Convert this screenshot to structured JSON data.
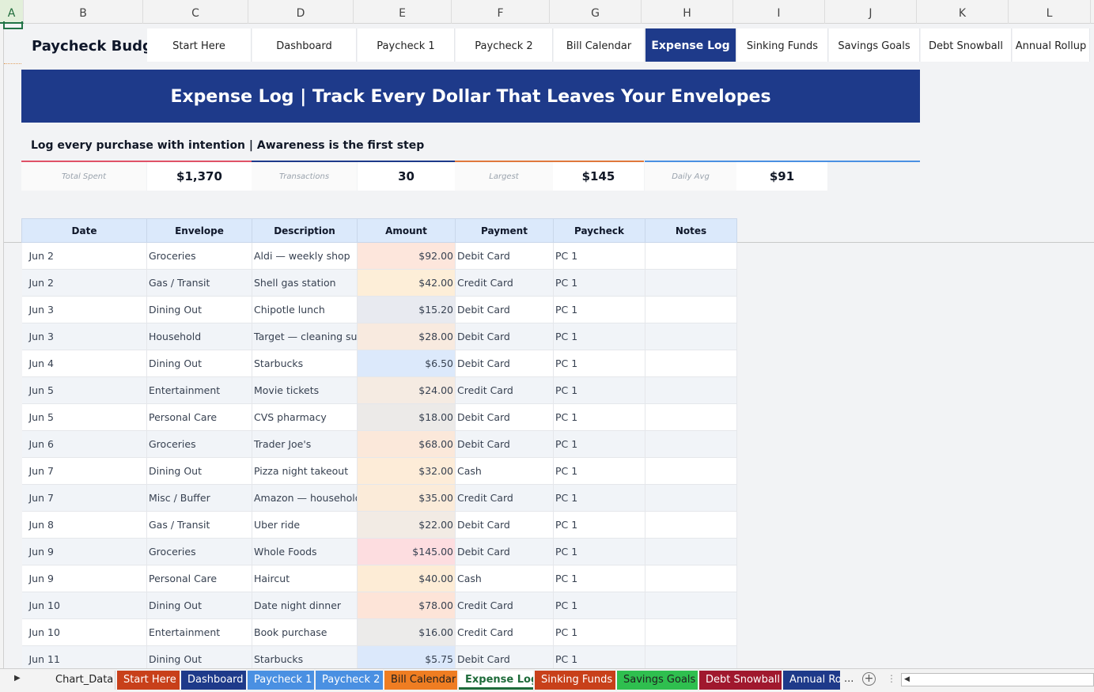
{
  "columns": [
    "A",
    "B",
    "C",
    "D",
    "E",
    "F",
    "G",
    "H",
    "I",
    "J",
    "K",
    "L"
  ],
  "nav": {
    "brand": "Paycheck Budget",
    "items": [
      "Start Here",
      "Dashboard",
      "Paycheck 1",
      "Paycheck 2",
      "Bill Calendar",
      "Expense Log",
      "Sinking Funds",
      "Savings Goals",
      "Debt Snowball",
      "Annual Rollup"
    ],
    "active": "Expense Log"
  },
  "banner": "Expense Log  |  Track Every Dollar That Leaves Your Envelopes",
  "subtitle": "Log every purchase with intention  |  Awareness is the first step",
  "kpis": [
    {
      "label": "Total Spent",
      "value": "$1,370",
      "color": "#e05267"
    },
    {
      "label": "Transactions",
      "value": "30",
      "color": "#1e3a8a"
    },
    {
      "label": "Largest",
      "value": "$145",
      "color": "#e0783c"
    },
    {
      "label": "Daily Avg",
      "value": "$91",
      "color": "#4a90e2"
    }
  ],
  "table": {
    "headers": [
      "Date",
      "Envelope",
      "Description",
      "Amount",
      "Payment",
      "Paycheck",
      "Notes"
    ],
    "rows": [
      {
        "date": "Jun 2",
        "envelope": "Groceries",
        "desc": "Aldi — weekly shop",
        "amount": "$92.00",
        "payment": "Debit Card",
        "paycheck": "PC 1",
        "notes": "",
        "tint": "#fde6dc"
      },
      {
        "date": "Jun 2",
        "envelope": "Gas / Transit",
        "desc": "Shell gas station",
        "amount": "$42.00",
        "payment": "Credit Card",
        "paycheck": "PC 1",
        "notes": "",
        "tint": "#fdeed8"
      },
      {
        "date": "Jun 3",
        "envelope": "Dining Out",
        "desc": "Chipotle lunch",
        "amount": "$15.20",
        "payment": "Debit Card",
        "paycheck": "PC 1",
        "notes": "",
        "tint": "#e8eaf0"
      },
      {
        "date": "Jun 3",
        "envelope": "Household",
        "desc": "Target — cleaning supplies",
        "amount": "$28.00",
        "payment": "Debit Card",
        "paycheck": "PC 1",
        "notes": "",
        "tint": "#f8eadf"
      },
      {
        "date": "Jun 4",
        "envelope": "Dining Out",
        "desc": "Starbucks",
        "amount": "$6.50",
        "payment": "Debit Card",
        "paycheck": "PC 1",
        "notes": "",
        "tint": "#dce9fb"
      },
      {
        "date": "Jun 5",
        "envelope": "Entertainment",
        "desc": "Movie tickets",
        "amount": "$24.00",
        "payment": "Credit Card",
        "paycheck": "PC 1",
        "notes": "",
        "tint": "#f5ebe2"
      },
      {
        "date": "Jun 5",
        "envelope": "Personal Care",
        "desc": "CVS pharmacy",
        "amount": "$18.00",
        "payment": "Debit Card",
        "paycheck": "PC 1",
        "notes": "",
        "tint": "#eceae8"
      },
      {
        "date": "Jun 6",
        "envelope": "Groceries",
        "desc": "Trader Joe's",
        "amount": "$68.00",
        "payment": "Debit Card",
        "paycheck": "PC 1",
        "notes": "",
        "tint": "#fbe8da"
      },
      {
        "date": "Jun 7",
        "envelope": "Dining Out",
        "desc": "Pizza night takeout",
        "amount": "$32.00",
        "payment": "Cash",
        "paycheck": "PC 1",
        "notes": "",
        "tint": "#fdecd8"
      },
      {
        "date": "Jun 7",
        "envelope": "Misc / Buffer",
        "desc": "Amazon — household",
        "amount": "$35.00",
        "payment": "Credit Card",
        "paycheck": "PC 1",
        "notes": "",
        "tint": "#fbebd9"
      },
      {
        "date": "Jun 8",
        "envelope": "Gas / Transit",
        "desc": "Uber ride",
        "amount": "$22.00",
        "payment": "Debit Card",
        "paycheck": "PC 1",
        "notes": "",
        "tint": "#f2ebe4"
      },
      {
        "date": "Jun 9",
        "envelope": "Groceries",
        "desc": "Whole Foods",
        "amount": "$145.00",
        "payment": "Debit Card",
        "paycheck": "PC 1",
        "notes": "",
        "tint": "#fddde0"
      },
      {
        "date": "Jun 9",
        "envelope": "Personal Care",
        "desc": "Haircut",
        "amount": "$40.00",
        "payment": "Cash",
        "paycheck": "PC 1",
        "notes": "",
        "tint": "#fdecd6"
      },
      {
        "date": "Jun 10",
        "envelope": "Dining Out",
        "desc": "Date night dinner",
        "amount": "$78.00",
        "payment": "Credit Card",
        "paycheck": "PC 1",
        "notes": "",
        "tint": "#fde4d8"
      },
      {
        "date": "Jun 10",
        "envelope": "Entertainment",
        "desc": "Book purchase",
        "amount": "$16.00",
        "payment": "Credit Card",
        "paycheck": "PC 1",
        "notes": "",
        "tint": "#ecebea"
      },
      {
        "date": "Jun 11",
        "envelope": "Dining Out",
        "desc": "Starbucks",
        "amount": "$5.75",
        "payment": "Debit Card",
        "paycheck": "PC 1",
        "notes": "",
        "tint": "#dbe8fb"
      }
    ]
  },
  "sheet_tabs": [
    {
      "label": "Chart_Data",
      "bg": "#f3f3f3",
      "style": "plain"
    },
    {
      "label": "Start Here",
      "bg": "#c8401a",
      "style": "color"
    },
    {
      "label": "Dashboard",
      "bg": "#1e3a8a",
      "style": "color"
    },
    {
      "label": "Paycheck 1",
      "bg": "#4a90e2",
      "style": "color"
    },
    {
      "label": "Paycheck 2",
      "bg": "#4a90e2",
      "style": "color"
    },
    {
      "label": "Bill Calendar",
      "bg": "#ef7d22",
      "style": "color"
    },
    {
      "label": "Expense Log",
      "bg": "#ffffff",
      "style": "active"
    },
    {
      "label": "Sinking Funds",
      "bg": "#c8401a",
      "style": "color"
    },
    {
      "label": "Savings Goals",
      "bg": "#2fbf4f",
      "style": "color"
    },
    {
      "label": "Debt Snowball",
      "bg": "#a0182e",
      "style": "color"
    },
    {
      "label": "Annual Ro",
      "bg": "#1e3a8a",
      "style": "color"
    }
  ],
  "tabbar": {
    "more": "...",
    "add": "+"
  }
}
